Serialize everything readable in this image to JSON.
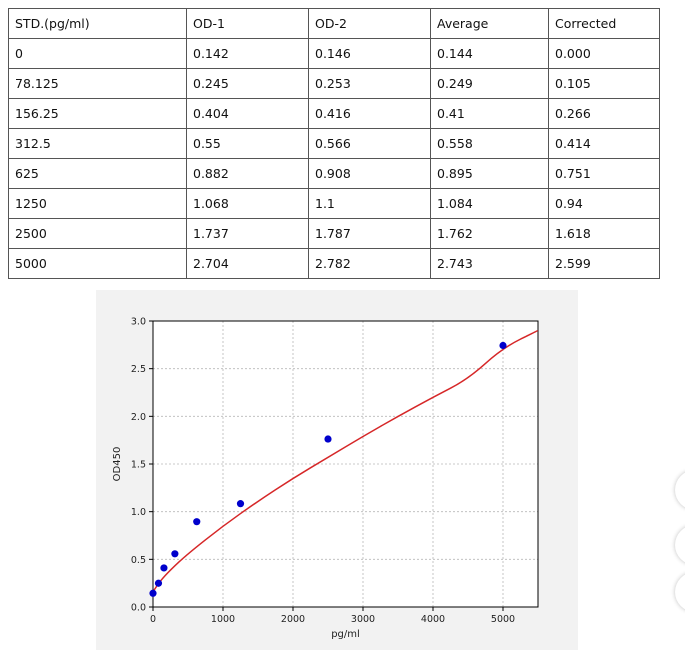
{
  "table": {
    "headers": [
      "STD.(pg/ml)",
      "OD-1",
      "OD-2",
      "Average",
      "Corrected"
    ],
    "rows": [
      [
        "0",
        "0.142",
        "0.146",
        "0.144",
        "0.000"
      ],
      [
        "78.125",
        "0.245",
        "0.253",
        "0.249",
        "0.105"
      ],
      [
        "156.25",
        "0.404",
        "0.416",
        "0.41",
        "0.266"
      ],
      [
        "312.5",
        "0.55",
        "0.566",
        "0.558",
        "0.414"
      ],
      [
        "625",
        "0.882",
        "0.908",
        "0.895",
        "0.751"
      ],
      [
        "1250",
        "1.068",
        "1.1",
        "1.084",
        "0.94"
      ],
      [
        "2500",
        "1.737",
        "1.787",
        "1.762",
        "1.618"
      ],
      [
        "5000",
        "2.704",
        "2.782",
        "2.743",
        "2.599"
      ]
    ]
  },
  "chart_data": {
    "type": "scatter",
    "title": "",
    "xlabel": "pg/ml",
    "ylabel": "OD450",
    "xlim": [
      0,
      5500
    ],
    "ylim": [
      0,
      3.0
    ],
    "xticks": [
      0,
      1000,
      2000,
      3000,
      4000,
      5000
    ],
    "yticks": [
      0.0,
      0.5,
      1.0,
      1.5,
      2.0,
      2.5,
      3.0
    ],
    "x_tick_labels": [
      "0",
      "1000",
      "2000",
      "3000",
      "4000",
      "5000"
    ],
    "y_tick_labels": [
      "0.0",
      "0.5",
      "1.0",
      "1.5",
      "2.0",
      "2.5",
      "3.0"
    ],
    "grid": true,
    "series": [
      {
        "kind": "points",
        "color": "#0000cc",
        "x": [
          0,
          78.125,
          156.25,
          312.5,
          625,
          1250,
          2500,
          5000
        ],
        "y": [
          0.144,
          0.249,
          0.41,
          0.558,
          0.895,
          1.084,
          1.762,
          2.743
        ]
      },
      {
        "kind": "fit-curve",
        "color": "#d62728",
        "x": [
          0,
          100,
          250,
          500,
          1000,
          1500,
          2000,
          2500,
          3000,
          3500,
          4000,
          4500,
          5000,
          5500
        ],
        "y": [
          0.16,
          0.27,
          0.39,
          0.56,
          0.85,
          1.11,
          1.35,
          1.57,
          1.79,
          2.0,
          2.2,
          2.39,
          2.72,
          2.9
        ]
      }
    ]
  }
}
